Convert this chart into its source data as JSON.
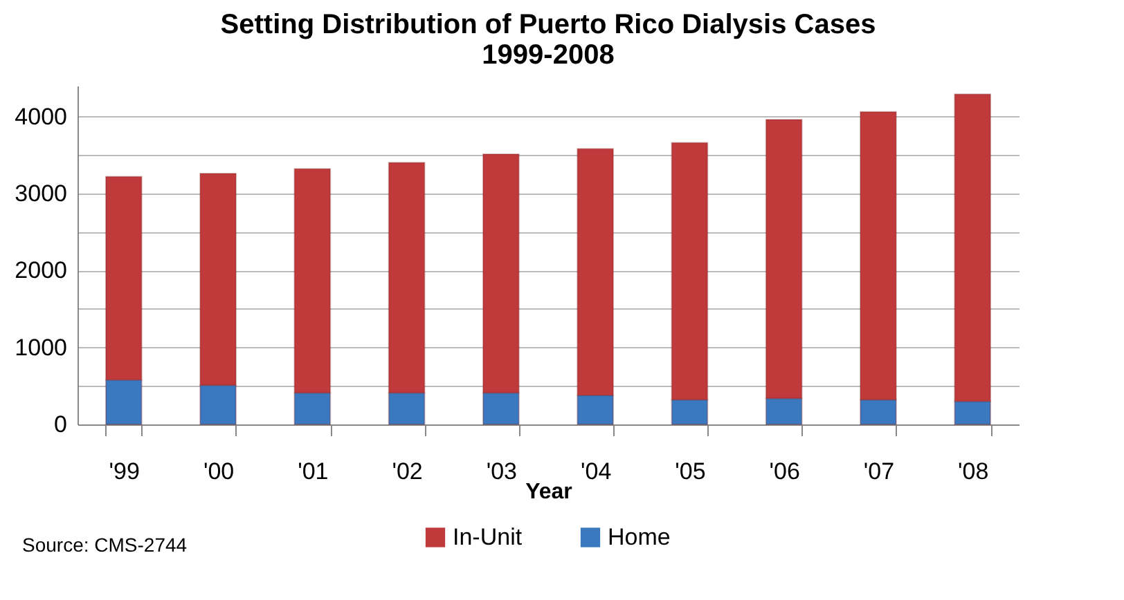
{
  "chart_data": {
    "type": "bar",
    "title": "Setting Distribution of Puerto Rico Dialysis Cases\n1999-2008",
    "xlabel": "Year",
    "categories": [
      "'99",
      "'00",
      "'01",
      "'02",
      "'03",
      "'04",
      "'05",
      "'06",
      "'07",
      "'08"
    ],
    "stacked": true,
    "series": [
      {
        "name": "Home",
        "color": "#3a78c0",
        "values": [
          580,
          510,
          410,
          410,
          410,
          380,
          320,
          340,
          320,
          300
        ]
      },
      {
        "name": "In-Unit",
        "color": "#c0393b",
        "values": [
          2640,
          2750,
          2910,
          2990,
          3100,
          3200,
          3340,
          3620,
          3740,
          3990
        ]
      }
    ],
    "ylim": [
      0,
      4400
    ],
    "yticks": [
      0,
      {
        "value": 500,
        "label": null
      },
      1000,
      {
        "value": 1500,
        "label": null
      },
      2000,
      {
        "value": 2500,
        "label": null
      },
      3000,
      {
        "value": 3500,
        "label": null
      },
      4000
    ],
    "grid": "y",
    "legend": "bottom",
    "annotations": [
      "Source: CMS-2744"
    ]
  }
}
